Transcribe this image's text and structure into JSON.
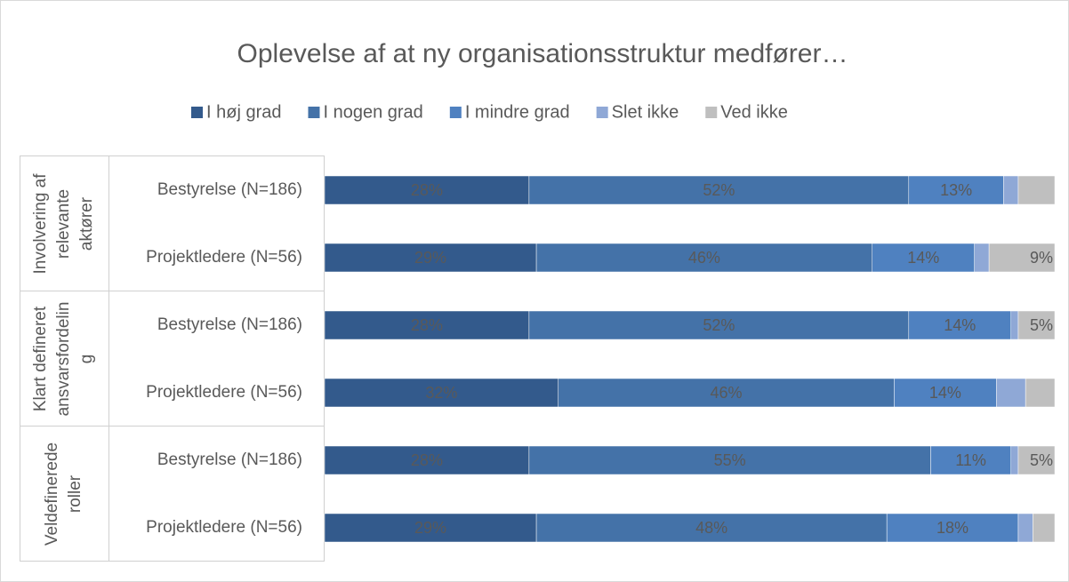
{
  "chart_data": {
    "type": "stacked-bar-horizontal",
    "title": "Oplevelse af at ny organisationsstruktur medfører…",
    "groups": [
      [
        "Involvering af",
        "relevante",
        "aktører"
      ],
      [
        "Klart defineret",
        "ansvarsfordelin",
        "g"
      ],
      [
        "Veldefinerede",
        "roller"
      ]
    ],
    "categories": [
      "Bestyrelse (N=186)",
      "Projektledere (N=56)",
      "Bestyrelse (N=186)",
      "Projektledere (N=56)",
      "Bestyrelse (N=186)",
      "Projektledere (N=56)"
    ],
    "xlim": [
      0,
      100
    ],
    "series": [
      {
        "name": "I høj grad",
        "color": "#335a8c",
        "values": [
          28,
          29,
          28,
          32,
          28,
          29
        ],
        "value_labels": [
          "28%",
          "29%",
          "28%",
          "32%",
          "28%",
          "29%"
        ]
      },
      {
        "name": "I nogen grad",
        "color": "#4472a8",
        "values": [
          52,
          46,
          52,
          46,
          55,
          48
        ],
        "value_labels": [
          "52%",
          "46%",
          "52%",
          "46%",
          "55%",
          "48%"
        ]
      },
      {
        "name": "I mindre grad",
        "color": "#4f81c0",
        "values": [
          13,
          14,
          14,
          14,
          11,
          18
        ],
        "value_labels": [
          "13%",
          "14%",
          "14%",
          "14%",
          "11%",
          "18%"
        ]
      },
      {
        "name": "Slet ikke",
        "color": "#8fa8d6",
        "values": [
          2,
          2,
          1,
          4,
          1,
          2
        ]
      },
      {
        "name": "Ved ikke",
        "color": "#bfbfbf",
        "values": [
          5,
          9,
          5,
          4,
          5,
          3
        ],
        "value_labels": [
          null,
          "9%",
          "5%",
          null,
          "5%",
          null
        ]
      }
    ]
  }
}
